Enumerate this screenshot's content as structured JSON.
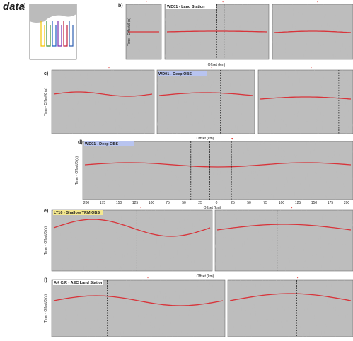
{
  "heading": "data",
  "panels": [
    {
      "label": "a)"
    },
    {
      "label": "b)",
      "title": "WD01 - Land Station",
      "y_axis": "Time - Offset/6 (s)",
      "x_axis": "Offset (km)"
    },
    {
      "label": "c)",
      "title": "WD01 - Deep OBS",
      "y_axis": "Time - Offset/6 (s)",
      "x_axis": "Offset (km)"
    },
    {
      "label": "d)",
      "title": "WD01 - Deep OBS",
      "y_axis": "Time - Offset/6 (s)",
      "x_axis": "Offset (km)",
      "x_ticks": [
        "200",
        "175",
        "150",
        "125",
        "100",
        "75",
        "50",
        "25",
        "0",
        "25",
        "50",
        "75",
        "100",
        "125",
        "150",
        "175",
        "200"
      ]
    },
    {
      "label": "e)",
      "title": "LT16 - Shallow TRM OBS",
      "y_axis": "Time - Offset/6 (s)",
      "x_axis": "Offset (km)"
    },
    {
      "label": "f)",
      "title": "AK C/R - AEC Land Station",
      "y_axis": "Time - Offset/6 (s)"
    }
  ]
}
